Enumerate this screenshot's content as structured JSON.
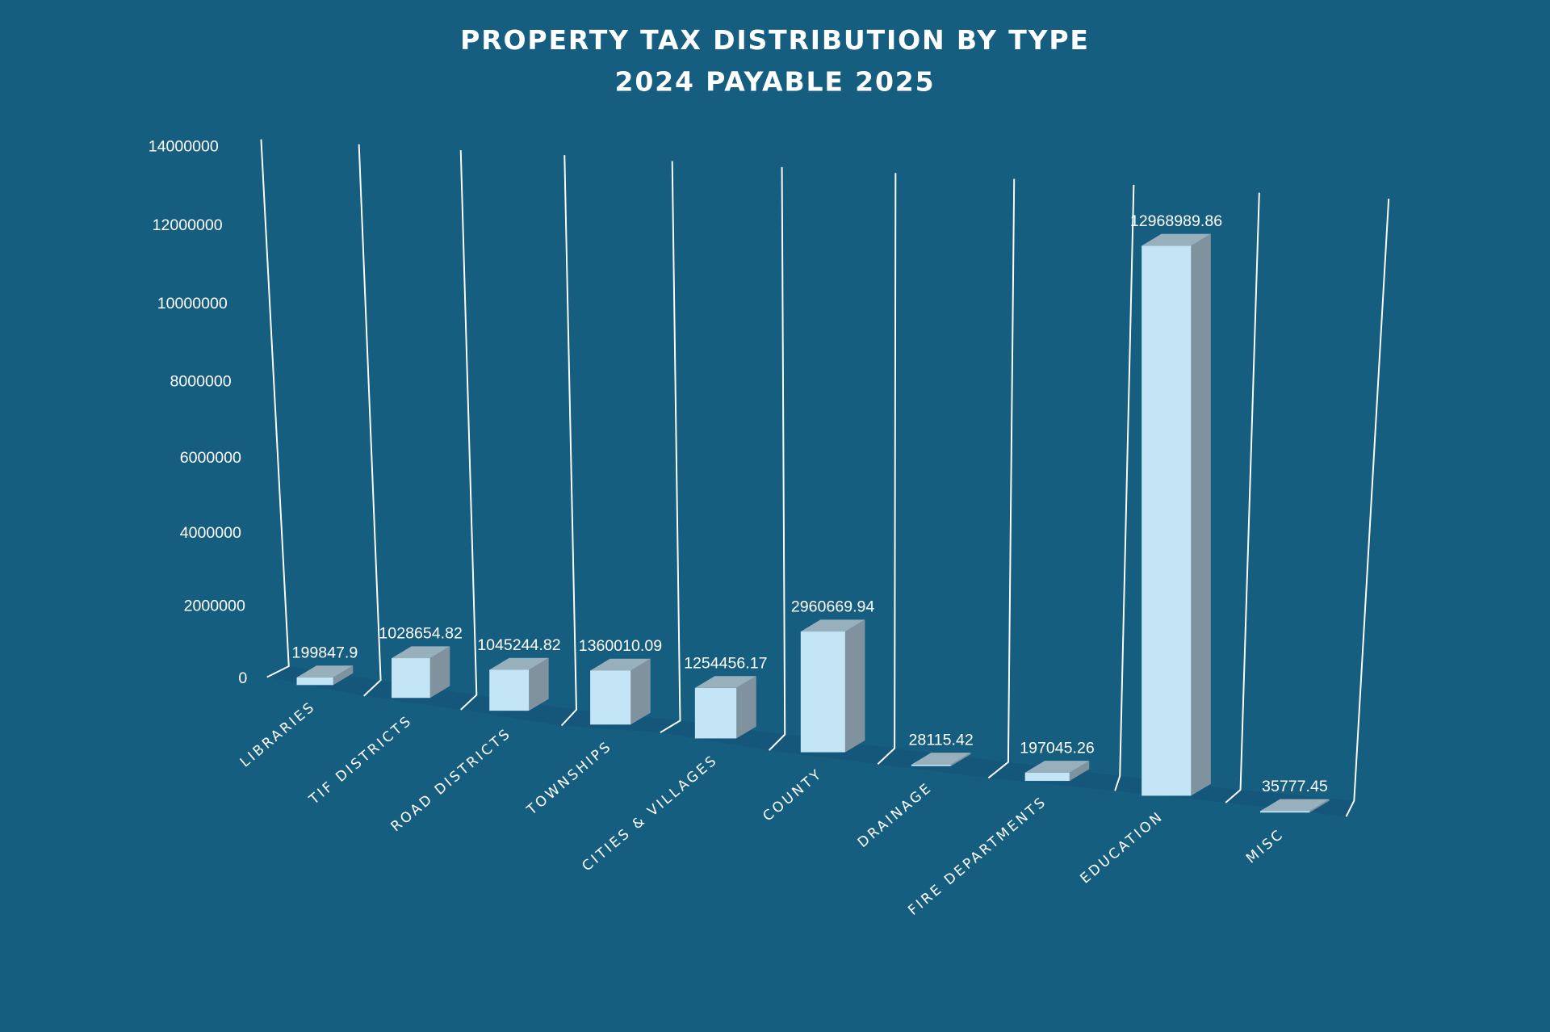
{
  "chart_data": {
    "type": "bar",
    "style": "3d-column",
    "title": "PROPERTY TAX DISTRIBUTION BY TYPE",
    "subtitle": "2024 PAYABLE 2025",
    "xlabel": "",
    "ylabel": "",
    "ylim": [
      0,
      14000000
    ],
    "yticks": [
      "0",
      "2000000",
      "4000000",
      "6000000",
      "8000000",
      "10000000",
      "12000000",
      "14000000"
    ],
    "grid": true,
    "categories": [
      "LIBRARIES",
      "TIF DISTRICTS",
      "ROAD DISTRICTS",
      "TOWNSHIPS",
      "CITIES & VILLAGES",
      "COUNTY",
      "DRAINAGE",
      "FIRE DEPARTMENTS",
      "EDUCATION",
      "MISC"
    ],
    "values": [
      199847.9,
      1028654.82,
      1045244.82,
      1360010.09,
      1254456.17,
      2960669.94,
      28115.42,
      197045.26,
      12968989.86,
      35777.45
    ],
    "value_labels": [
      "199847.9",
      "1028654.82",
      "1045244.82",
      "1360010.09",
      "1254456.17",
      "2960669.94",
      "28115.42",
      "197045.26",
      "12968989.86",
      "35777.45"
    ],
    "colors": {
      "background": "#165e80",
      "bar_front": "#c3e5f6",
      "bar_side": "#7f929e",
      "bar_top": "#98afbc",
      "grid": "#ffffff"
    }
  }
}
